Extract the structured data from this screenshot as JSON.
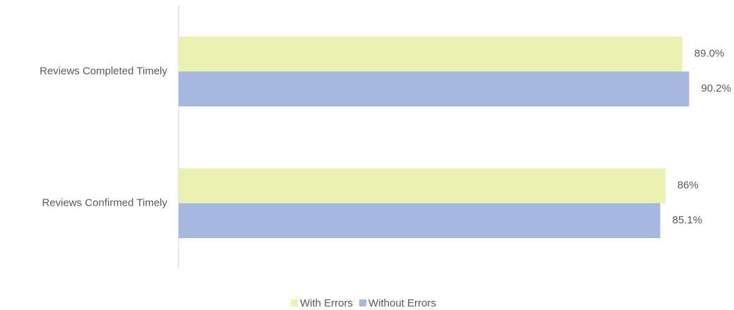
{
  "chart_data": {
    "type": "bar",
    "orientation": "horizontal",
    "categories": [
      "Reviews Completed Timely",
      "Reviews Confirmed Timely"
    ],
    "series": [
      {
        "name": "With Errors",
        "color": "#ebf1ae",
        "values": [
          89.0,
          86
        ],
        "value_labels": [
          "89.0%",
          "86%"
        ]
      },
      {
        "name": "Without Errors",
        "color": "#a5b8df",
        "values": [
          90.2,
          85.1
        ],
        "value_labels": [
          "90.2%",
          "85.1%"
        ]
      }
    ],
    "legend": "bottom"
  }
}
